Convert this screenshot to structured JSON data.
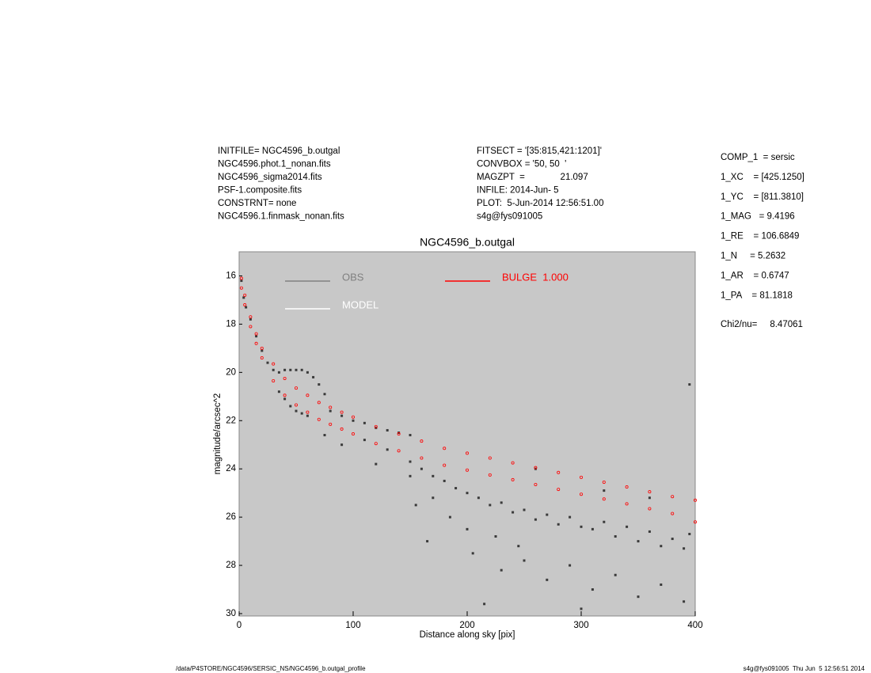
{
  "chart_data": {
    "type": "scatter",
    "header_left": [
      "INITFILE= NGC4596_b.outgal",
      "NGC4596.phot.1_nonan.fits",
      "NGC4596_sigma2014.fits",
      "PSF-1.composite.fits",
      "CONSTRNT= none",
      "NGC4596.1.finmask_nonan.fits"
    ],
    "header_middle": [
      "FITSECT = '[35:815,421:1201]'",
      "CONVBOX = '50, 50  '",
      "MAGZPT  =              21.097",
      "INFILE: 2014-Jun- 5",
      "PLOT:  5-Jun-2014 12:56:51.00",
      "s4g@fys091005"
    ],
    "header_right": [
      "COMP_1  = sersic",
      "1_XC    = [425.1250]",
      "1_YC    = [811.3810]",
      "1_MAG   = 9.4196",
      "1_RE    = 106.6849",
      "1_N     = 5.2632",
      "1_AR    = 0.6747",
      "1_PA    = 81.1818",
      "Chi2/nu=     8.47061"
    ],
    "title": "NGC4596_b.outgal",
    "xlabel": "Distance along sky [pix]",
    "ylabel": "magnitude/arcsec^2",
    "footer_left": "/data/P4STORE/NGC4596/SERSIC_NS/NGC4596_b.outgal_profile",
    "footer_right": "s4g@fys091005  Thu Jun  5 12:56:51 2014",
    "xlim": [
      0,
      400
    ],
    "xticks": [
      0,
      100,
      200,
      300,
      400
    ],
    "ylim": [
      30,
      15
    ],
    "yticks": [
      16,
      18,
      20,
      22,
      24,
      26,
      28,
      30
    ],
    "background": "#c8c8c8",
    "series": [
      {
        "name": "OBS",
        "color": "#808080",
        "marker_color": "#3a3a3a",
        "x": [
          2,
          4,
          6,
          10,
          15,
          20,
          25,
          30,
          35,
          40,
          45,
          50,
          55,
          60,
          65,
          70,
          75,
          35,
          40,
          45,
          50,
          55,
          60,
          80,
          90,
          100,
          110,
          120,
          130,
          140,
          150,
          110,
          130,
          150,
          160,
          170,
          180,
          190,
          200,
          210,
          220,
          230,
          240,
          250,
          260,
          270,
          280,
          290,
          300,
          310,
          320,
          330,
          340,
          350,
          360,
          370,
          380,
          390,
          395,
          205,
          230,
          250,
          270,
          290,
          310,
          330,
          350,
          370,
          390,
          215,
          300,
          170,
          185,
          200,
          225,
          245,
          90,
          75,
          120,
          150,
          395,
          260,
          320,
          360,
          165,
          155
        ],
        "y": [
          16.2,
          16.9,
          17.3,
          17.8,
          18.5,
          19.1,
          19.6,
          19.9,
          20.0,
          19.9,
          19.9,
          19.9,
          19.9,
          20.0,
          20.2,
          20.5,
          20.9,
          20.8,
          21.1,
          21.4,
          21.6,
          21.7,
          21.8,
          21.6,
          21.8,
          22.0,
          22.1,
          22.3,
          22.4,
          22.5,
          22.6,
          22.8,
          23.2,
          23.7,
          24.0,
          24.3,
          24.5,
          24.8,
          25.0,
          25.2,
          25.5,
          25.4,
          25.8,
          25.7,
          26.1,
          25.9,
          26.3,
          26.0,
          26.4,
          26.5,
          26.2,
          26.8,
          26.4,
          27.0,
          26.6,
          27.2,
          26.9,
          27.3,
          26.7,
          27.5,
          28.2,
          27.8,
          28.6,
          28.0,
          29.0,
          28.4,
          29.3,
          28.8,
          29.5,
          29.6,
          29.8,
          25.2,
          26.0,
          26.5,
          26.8,
          27.2,
          23.0,
          22.6,
          23.8,
          24.3,
          20.5,
          24.0,
          24.9,
          25.2,
          27.0,
          25.5
        ]
      },
      {
        "name": "MODEL",
        "color": "#ffffff",
        "marker_color": "#ffffff",
        "x": [],
        "y": []
      },
      {
        "name": "BULGE  1.000",
        "color": "#ff0000",
        "marker_color": "#ff0000",
        "x": [
          2,
          5,
          10,
          15,
          20,
          30,
          40,
          50,
          60,
          70,
          80,
          90,
          100,
          120,
          140,
          160,
          180,
          200,
          220,
          240,
          260,
          280,
          300,
          320,
          340,
          360,
          380,
          400,
          2,
          5,
          10,
          15,
          20,
          30,
          40,
          50,
          60,
          70,
          80,
          90,
          100,
          120,
          140,
          160,
          180,
          200,
          220,
          240,
          260,
          280,
          300,
          320,
          340,
          360,
          380,
          400
        ],
        "y": [
          16.1,
          16.8,
          17.7,
          18.4,
          19.0,
          19.65,
          20.25,
          20.65,
          20.95,
          21.25,
          21.45,
          21.65,
          21.85,
          22.25,
          22.55,
          22.85,
          23.15,
          23.35,
          23.55,
          23.75,
          23.95,
          24.15,
          24.35,
          24.55,
          24.75,
          24.95,
          25.15,
          25.3,
          16.5,
          17.2,
          18.1,
          18.8,
          19.4,
          20.35,
          20.95,
          21.35,
          21.65,
          21.95,
          22.15,
          22.35,
          22.55,
          22.95,
          23.25,
          23.55,
          23.85,
          24.05,
          24.25,
          24.45,
          24.65,
          24.85,
          25.05,
          25.25,
          25.45,
          25.65,
          25.85,
          26.2
        ]
      }
    ]
  }
}
